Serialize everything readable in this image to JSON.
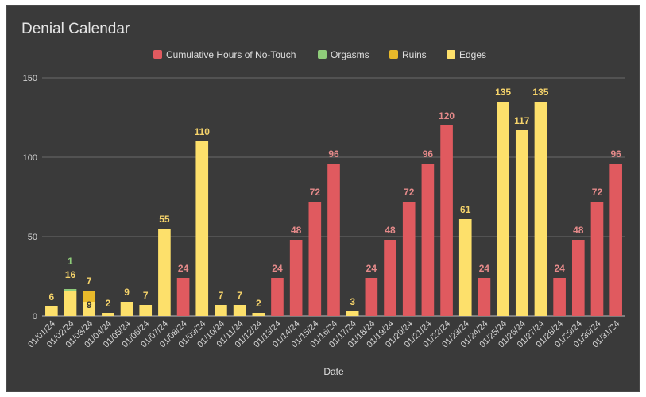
{
  "chart_data": {
    "type": "bar",
    "title": "Denial Calendar",
    "xlabel": "Date",
    "ylabel": "",
    "ylim": [
      0,
      150
    ],
    "yticks": [
      0,
      50,
      100,
      150
    ],
    "grid": true,
    "legend_position": "top",
    "colors": {
      "background": "#3a3a3a",
      "grid": "#6a6a6a",
      "hours": "#e05a5f",
      "orgasms": "#8fcc7a",
      "ruins": "#e8b92a",
      "edges": "#fde06b",
      "label_hours": "#e58a8a",
      "label_orgasms": "#8fcc7a",
      "label_edges": "#f5d36b",
      "label_ruins_inner": "#333333"
    },
    "categories": [
      "01/01/24",
      "01/02/24",
      "01/03/24",
      "01/04/24",
      "01/05/24",
      "01/06/24",
      "01/07/24",
      "01/08/24",
      "01/09/24",
      "01/10/24",
      "01/11/24",
      "01/12/24",
      "01/13/24",
      "01/14/24",
      "01/15/24",
      "01/16/24",
      "01/17/24",
      "01/18/24",
      "01/19/24",
      "01/20/24",
      "01/21/24",
      "01/22/24",
      "01/23/24",
      "01/24/24",
      "01/25/24",
      "01/26/24",
      "01/27/24",
      "01/28/24",
      "01/29/24",
      "01/30/24",
      "01/31/24"
    ],
    "series": [
      {
        "name": "Cumulative Hours of No-Touch",
        "values": [
          null,
          null,
          null,
          null,
          null,
          null,
          null,
          24,
          null,
          null,
          null,
          null,
          24,
          48,
          72,
          96,
          null,
          24,
          48,
          72,
          96,
          120,
          null,
          24,
          null,
          null,
          null,
          24,
          48,
          72,
          96
        ]
      },
      {
        "name": "Orgasms",
        "values": [
          null,
          1,
          null,
          null,
          null,
          null,
          null,
          null,
          null,
          null,
          null,
          null,
          null,
          null,
          null,
          null,
          null,
          null,
          null,
          null,
          null,
          null,
          null,
          null,
          null,
          null,
          null,
          null,
          null,
          null,
          null
        ]
      },
      {
        "name": "Ruins",
        "values": [
          null,
          null,
          7,
          null,
          null,
          null,
          null,
          null,
          null,
          null,
          null,
          null,
          null,
          null,
          null,
          null,
          null,
          null,
          null,
          null,
          null,
          null,
          null,
          null,
          null,
          null,
          null,
          null,
          null,
          null,
          null
        ]
      },
      {
        "name": "Edges",
        "values": [
          6,
          16,
          9,
          2,
          9,
          7,
          55,
          null,
          110,
          7,
          7,
          2,
          null,
          null,
          null,
          null,
          3,
          null,
          null,
          null,
          null,
          null,
          61,
          null,
          135,
          117,
          135,
          null,
          null,
          null,
          null
        ]
      }
    ]
  }
}
